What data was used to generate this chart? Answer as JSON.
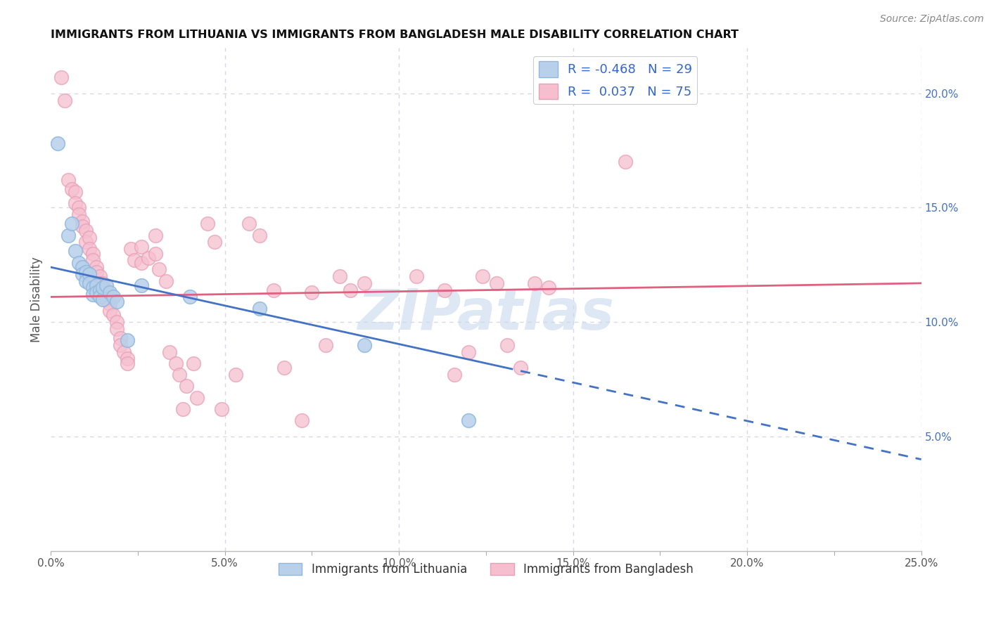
{
  "title": "IMMIGRANTS FROM LITHUANIA VS IMMIGRANTS FROM BANGLADESH MALE DISABILITY CORRELATION CHART",
  "source": "Source: ZipAtlas.com",
  "ylabel": "Male Disability",
  "xlim": [
    0.0,
    0.25
  ],
  "ylim": [
    0.0,
    0.22
  ],
  "xticks": [
    0.0,
    0.025,
    0.05,
    0.075,
    0.1,
    0.125,
    0.15,
    0.175,
    0.2,
    0.225,
    0.25
  ],
  "xticklabels": [
    "0.0%",
    "",
    "5.0%",
    "",
    "10.0%",
    "",
    "15.0%",
    "",
    "20.0%",
    "",
    "25.0%"
  ],
  "yticks_right": [
    0.05,
    0.1,
    0.15,
    0.2
  ],
  "ytick_labels_right": [
    "5.0%",
    "10.0%",
    "15.0%",
    "20.0%"
  ],
  "legend_entries": [
    {
      "label": "R = -0.468   N = 29",
      "color": "#b8d0ea"
    },
    {
      "label": "R =  0.037   N = 75",
      "color": "#f5bfcf"
    }
  ],
  "legend_xlabel": [
    "Immigrants from Lithuania",
    "Immigrants from Bangladesh"
  ],
  "series_lithuania": {
    "color": "#b8d0ea",
    "edge_color": "#90b8de",
    "points": [
      [
        0.002,
        0.178
      ],
      [
        0.005,
        0.138
      ],
      [
        0.006,
        0.143
      ],
      [
        0.007,
        0.131
      ],
      [
        0.008,
        0.126
      ],
      [
        0.009,
        0.124
      ],
      [
        0.009,
        0.121
      ],
      [
        0.01,
        0.122
      ],
      [
        0.01,
        0.118
      ],
      [
        0.011,
        0.121
      ],
      [
        0.011,
        0.117
      ],
      [
        0.012,
        0.115
      ],
      [
        0.012,
        0.112
      ],
      [
        0.013,
        0.116
      ],
      [
        0.013,
        0.113
      ],
      [
        0.014,
        0.114
      ],
      [
        0.014,
        0.111
      ],
      [
        0.015,
        0.11
      ],
      [
        0.015,
        0.115
      ],
      [
        0.016,
        0.116
      ],
      [
        0.017,
        0.113
      ],
      [
        0.018,
        0.111
      ],
      [
        0.019,
        0.109
      ],
      [
        0.022,
        0.092
      ],
      [
        0.026,
        0.116
      ],
      [
        0.04,
        0.111
      ],
      [
        0.06,
        0.106
      ],
      [
        0.09,
        0.09
      ],
      [
        0.12,
        0.057
      ]
    ]
  },
  "series_bangladesh": {
    "color": "#f5bfcf",
    "edge_color": "#e8a0b8",
    "points": [
      [
        0.003,
        0.207
      ],
      [
        0.004,
        0.197
      ],
      [
        0.005,
        0.162
      ],
      [
        0.006,
        0.158
      ],
      [
        0.007,
        0.157
      ],
      [
        0.007,
        0.152
      ],
      [
        0.008,
        0.15
      ],
      [
        0.008,
        0.147
      ],
      [
        0.009,
        0.144
      ],
      [
        0.009,
        0.142
      ],
      [
        0.01,
        0.14
      ],
      [
        0.01,
        0.135
      ],
      [
        0.011,
        0.137
      ],
      [
        0.011,
        0.132
      ],
      [
        0.012,
        0.13
      ],
      [
        0.012,
        0.127
      ],
      [
        0.013,
        0.124
      ],
      [
        0.013,
        0.122
      ],
      [
        0.014,
        0.12
      ],
      [
        0.014,
        0.117
      ],
      [
        0.015,
        0.117
      ],
      [
        0.015,
        0.114
      ],
      [
        0.016,
        0.113
      ],
      [
        0.016,
        0.11
      ],
      [
        0.017,
        0.108
      ],
      [
        0.017,
        0.105
      ],
      [
        0.018,
        0.103
      ],
      [
        0.019,
        0.1
      ],
      [
        0.019,
        0.097
      ],
      [
        0.02,
        0.093
      ],
      [
        0.02,
        0.09
      ],
      [
        0.021,
        0.087
      ],
      [
        0.022,
        0.084
      ],
      [
        0.022,
        0.082
      ],
      [
        0.023,
        0.132
      ],
      [
        0.024,
        0.127
      ],
      [
        0.026,
        0.133
      ],
      [
        0.026,
        0.126
      ],
      [
        0.028,
        0.128
      ],
      [
        0.03,
        0.138
      ],
      [
        0.03,
        0.13
      ],
      [
        0.031,
        0.123
      ],
      [
        0.033,
        0.118
      ],
      [
        0.034,
        0.087
      ],
      [
        0.036,
        0.082
      ],
      [
        0.037,
        0.077
      ],
      [
        0.038,
        0.062
      ],
      [
        0.039,
        0.072
      ],
      [
        0.041,
        0.082
      ],
      [
        0.042,
        0.067
      ],
      [
        0.045,
        0.143
      ],
      [
        0.047,
        0.135
      ],
      [
        0.049,
        0.062
      ],
      [
        0.053,
        0.077
      ],
      [
        0.057,
        0.143
      ],
      [
        0.06,
        0.138
      ],
      [
        0.064,
        0.114
      ],
      [
        0.067,
        0.08
      ],
      [
        0.072,
        0.057
      ],
      [
        0.075,
        0.113
      ],
      [
        0.079,
        0.09
      ],
      [
        0.083,
        0.12
      ],
      [
        0.086,
        0.114
      ],
      [
        0.09,
        0.117
      ],
      [
        0.105,
        0.12
      ],
      [
        0.113,
        0.114
      ],
      [
        0.116,
        0.077
      ],
      [
        0.12,
        0.087
      ],
      [
        0.124,
        0.12
      ],
      [
        0.128,
        0.117
      ],
      [
        0.131,
        0.09
      ],
      [
        0.135,
        0.08
      ],
      [
        0.139,
        0.117
      ],
      [
        0.143,
        0.115
      ],
      [
        0.165,
        0.17
      ]
    ]
  },
  "trendline_lithuania": {
    "x_start": 0.0,
    "y_start": 0.124,
    "x_end": 0.25,
    "y_end": 0.04,
    "color": "#4472c4",
    "solid_end": 0.13,
    "dashed_start": 0.13
  },
  "trendline_bangladesh": {
    "x_start": 0.0,
    "y_start": 0.111,
    "x_end": 0.25,
    "y_end": 0.117,
    "color": "#e06080"
  },
  "background_color": "#ffffff",
  "grid_color": "#d8d8e8",
  "watermark": "ZIPatlas",
  "watermark_color": "#c8d8ee"
}
